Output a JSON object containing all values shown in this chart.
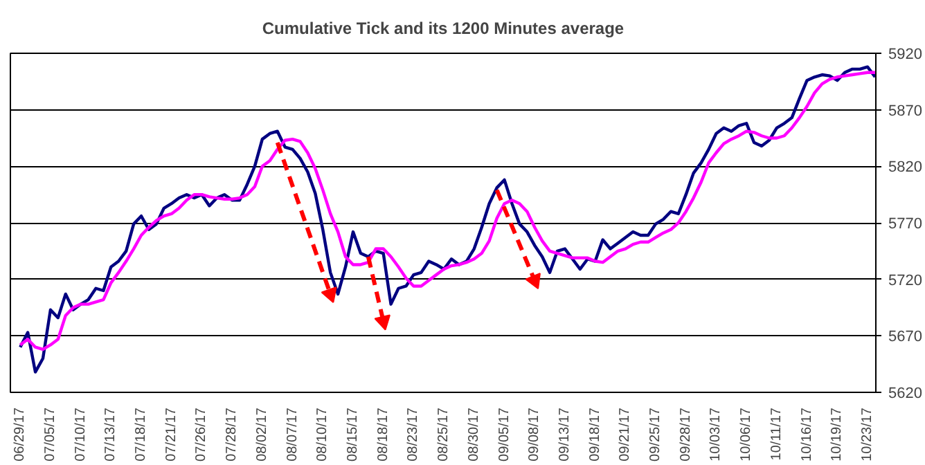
{
  "chart_data": {
    "type": "line",
    "title": "Cumulative Tick and its 1200 Minutes average",
    "categories": [
      "06/29/17",
      null,
      null,
      null,
      "07/05/17",
      null,
      null,
      null,
      "07/10/17",
      null,
      null,
      null,
      "07/13/17",
      null,
      null,
      null,
      "07/18/17",
      null,
      null,
      null,
      "07/21/17",
      null,
      null,
      null,
      "07/26/17",
      null,
      null,
      null,
      "07/28/17",
      null,
      null,
      null,
      "08/02/17",
      null,
      null,
      null,
      "08/07/17",
      null,
      null,
      null,
      "08/10/17",
      null,
      null,
      null,
      "08/15/17",
      null,
      null,
      null,
      "08/18/17",
      null,
      null,
      null,
      "08/23/17",
      null,
      null,
      null,
      "08/25/17",
      null,
      null,
      null,
      "08/30/17",
      null,
      null,
      null,
      "09/05/17",
      null,
      null,
      null,
      "09/08/17",
      null,
      null,
      null,
      "09/13/17",
      null,
      null,
      null,
      "09/18/17",
      null,
      null,
      null,
      "09/21/17",
      null,
      null,
      null,
      "09/25/17",
      null,
      null,
      null,
      "09/28/17",
      null,
      null,
      null,
      "10/03/17",
      null,
      null,
      null,
      "10/06/17",
      null,
      null,
      null,
      "10/11/17",
      null,
      null,
      null,
      "10/16/17",
      null,
      null,
      null,
      "10/19/17",
      null,
      null,
      null,
      "10/23/17",
      null
    ],
    "series": [
      {
        "color": "#000080",
        "values": [
          5660,
          5673,
          5638,
          5650,
          5693,
          5686,
          5707,
          5693,
          5698,
          5702,
          5712,
          5710,
          5731,
          5736,
          5745,
          5769,
          5776,
          5764,
          5769,
          5783,
          5787,
          5792,
          5795,
          5792,
          5795,
          5785,
          5792,
          5795,
          5790,
          5790,
          5804,
          5820,
          5844,
          5849,
          5851,
          5837,
          5835,
          5827,
          5815,
          5796,
          5764,
          5726,
          5707,
          5731,
          5762,
          5743,
          5740,
          5745,
          5743,
          5698,
          5712,
          5714,
          5724,
          5726,
          5736,
          5733,
          5729,
          5738,
          5733,
          5736,
          5747,
          5766,
          5787,
          5801,
          5808,
          5787,
          5769,
          5762,
          5750,
          5740,
          5726,
          5745,
          5747,
          5738,
          5729,
          5738,
          5736,
          5755,
          5747,
          5752,
          5757,
          5762,
          5759,
          5759,
          5769,
          5773,
          5780,
          5778,
          5795,
          5814,
          5823,
          5835,
          5849,
          5854,
          5851,
          5856,
          5858,
          5841,
          5838,
          5843,
          5854,
          5858,
          5863,
          5880,
          5896,
          5899,
          5901,
          5900,
          5896,
          5903,
          5906,
          5906,
          5908,
          5899
        ]
      },
      {
        "color": "#ff00ff",
        "values": [
          5662,
          5667,
          5660,
          5658,
          5662,
          5667,
          5688,
          5695,
          5698,
          5698,
          5700,
          5702,
          5717,
          5726,
          5736,
          5747,
          5759,
          5766,
          5772,
          5776,
          5778,
          5783,
          5790,
          5795,
          5795,
          5793,
          5792,
          5791,
          5791,
          5792,
          5795,
          5802,
          5820,
          5825,
          5835,
          5843,
          5844,
          5842,
          5832,
          5818,
          5799,
          5778,
          5762,
          5740,
          5733,
          5733,
          5735,
          5747,
          5747,
          5740,
          5731,
          5721,
          5714,
          5714,
          5719,
          5724,
          5729,
          5732,
          5733,
          5735,
          5738,
          5743,
          5754,
          5774,
          5787,
          5790,
          5787,
          5780,
          5766,
          5754,
          5745,
          5743,
          5741,
          5739,
          5739,
          5739,
          5736,
          5735,
          5740,
          5745,
          5747,
          5751,
          5753,
          5753,
          5757,
          5761,
          5764,
          5770,
          5780,
          5792,
          5806,
          5823,
          5832,
          5840,
          5844,
          5847,
          5851,
          5850,
          5847,
          5845,
          5845,
          5847,
          5854,
          5863,
          5873,
          5885,
          5893,
          5897,
          5899,
          5900,
          5901,
          5902,
          5903,
          5903
        ]
      },
      {
        "type": "line",
        "color": "#ff0000",
        "line_style": "dashed",
        "marker": "triangle",
        "values": [
          null,
          null,
          null,
          null,
          null,
          null,
          null,
          null,
          null,
          null,
          null,
          null,
          null,
          null,
          null,
          null,
          null,
          null,
          null,
          null,
          null,
          null,
          null,
          null,
          null,
          null,
          null,
          null,
          null,
          null,
          null,
          null,
          null,
          null,
          5841,
          null,
          null,
          null,
          null,
          null,
          null,
          5707,
          null,
          null,
          null,
          null,
          null,
          null,
          null,
          null,
          null,
          null,
          null,
          null,
          null,
          null,
          null,
          null,
          null,
          null,
          null,
          null,
          null,
          null,
          null,
          null,
          null,
          null,
          null,
          null,
          null,
          null,
          null,
          null,
          null,
          null,
          null,
          null,
          null,
          null,
          null,
          null,
          null,
          null,
          null,
          null,
          null,
          null,
          null,
          null,
          null,
          null,
          null,
          null,
          null,
          null,
          null,
          null,
          null,
          null,
          null,
          null,
          null,
          null,
          null,
          null,
          null,
          null,
          null,
          null,
          null,
          null,
          null,
          null
        ]
      },
      {
        "type": "line",
        "color": "#ff0000",
        "line_style": "dashed",
        "marker": "triangle",
        "values": [
          null,
          null,
          null,
          null,
          null,
          null,
          null,
          null,
          null,
          null,
          null,
          null,
          null,
          null,
          null,
          null,
          null,
          null,
          null,
          null,
          null,
          null,
          null,
          null,
          null,
          null,
          null,
          null,
          null,
          null,
          null,
          null,
          null,
          null,
          null,
          null,
          null,
          null,
          null,
          null,
          null,
          null,
          null,
          null,
          null,
          null,
          5740,
          null,
          5683,
          null,
          null,
          null,
          null,
          null,
          null,
          null,
          null,
          null,
          null,
          null,
          null,
          null,
          null,
          null,
          null,
          null,
          null,
          null,
          null,
          null,
          null,
          null,
          null,
          null,
          null,
          null,
          null,
          null,
          null,
          null,
          null,
          null,
          null,
          null,
          null,
          null,
          null,
          null,
          null,
          null,
          null,
          null,
          null,
          null,
          null,
          null,
          null,
          null,
          null,
          null,
          null,
          null,
          null,
          null,
          null,
          null,
          null,
          null,
          null,
          null,
          null,
          null,
          null,
          null
        ]
      },
      {
        "type": "line",
        "color": "#ff0000",
        "line_style": "dashed",
        "marker": "triangle",
        "values": [
          null,
          null,
          null,
          null,
          null,
          null,
          null,
          null,
          null,
          null,
          null,
          null,
          null,
          null,
          null,
          null,
          null,
          null,
          null,
          null,
          null,
          null,
          null,
          null,
          null,
          null,
          null,
          null,
          null,
          null,
          null,
          null,
          null,
          null,
          null,
          null,
          null,
          null,
          null,
          null,
          null,
          null,
          null,
          null,
          null,
          null,
          null,
          null,
          null,
          null,
          null,
          null,
          null,
          null,
          null,
          null,
          null,
          null,
          null,
          null,
          null,
          null,
          null,
          5799,
          null,
          null,
          null,
          null,
          5719,
          null,
          null,
          null,
          null,
          null,
          null,
          null,
          null,
          null,
          null,
          null,
          null,
          null,
          null,
          null,
          null,
          null,
          null,
          null,
          null,
          null,
          null,
          null,
          null,
          null,
          null,
          null,
          null,
          null,
          null,
          null,
          null,
          null,
          null,
          null,
          null,
          null,
          null,
          null,
          null,
          null,
          null,
          null,
          null,
          null
        ]
      }
    ],
    "ylim": [
      5620,
      5920
    ],
    "yticks": [
      5620,
      5670,
      5720,
      5770,
      5820,
      5870,
      5920
    ],
    "grid": "y",
    "marker": "none",
    "line_style": "solid"
  }
}
